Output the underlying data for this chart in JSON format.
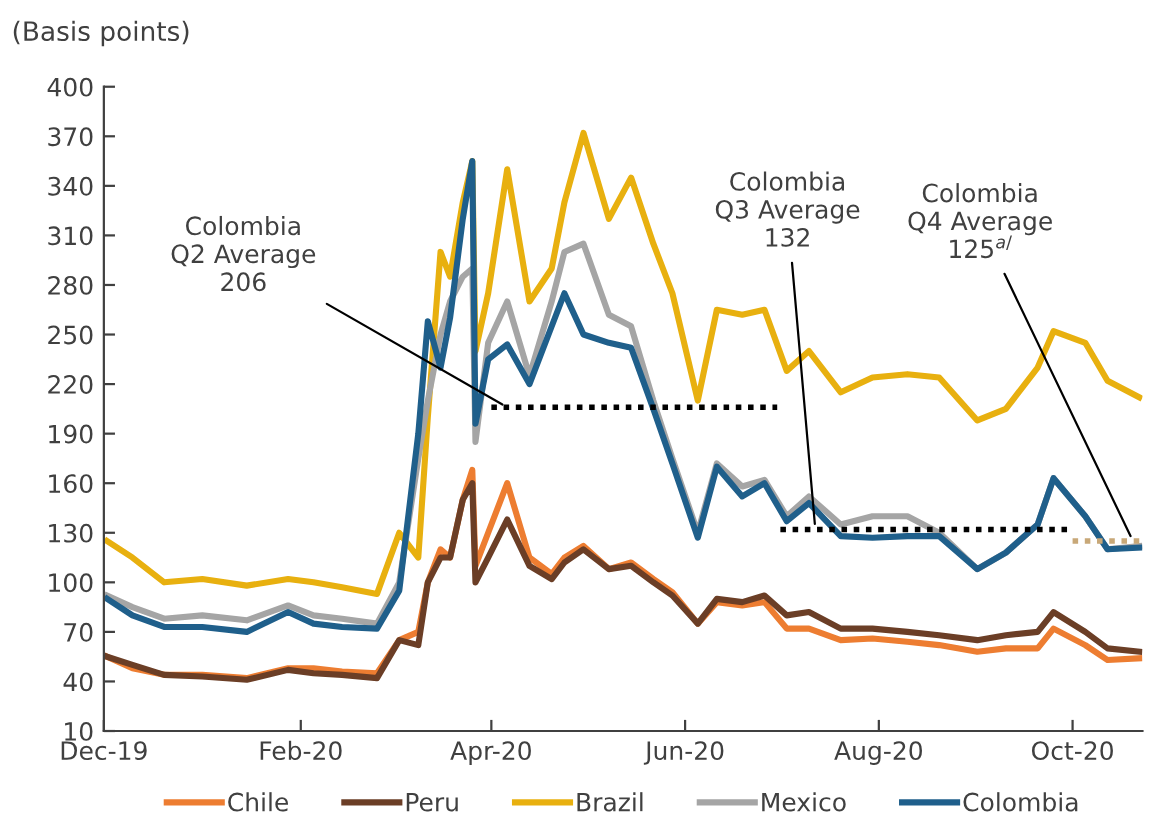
{
  "chart_data": {
    "type": "line",
    "ylabel": "(Basis points)",
    "x": [
      "2019-12-02",
      "2019-12-10",
      "2019-12-20",
      "2020-01-01",
      "2020-01-15",
      "2020-01-28",
      "2020-02-05",
      "2020-02-14",
      "2020-02-25",
      "2020-03-03",
      "2020-03-09",
      "2020-03-12",
      "2020-03-16",
      "2020-03-19",
      "2020-03-23",
      "2020-03-26",
      "2020-03-27",
      "2020-03-31",
      "2020-04-06",
      "2020-04-13",
      "2020-04-20",
      "2020-04-24",
      "2020-04-30",
      "2020-05-08",
      "2020-05-15",
      "2020-05-22",
      "2020-05-28",
      "2020-06-05",
      "2020-06-11",
      "2020-06-19",
      "2020-06-26",
      "2020-07-03",
      "2020-07-10",
      "2020-07-20",
      "2020-07-30",
      "2020-08-10",
      "2020-08-20",
      "2020-09-01",
      "2020-09-10",
      "2020-09-20",
      "2020-09-25",
      "2020-10-05",
      "2020-10-12",
      "2020-10-22"
    ],
    "series": [
      {
        "name": "Chile",
        "color": "#ed7d31",
        "values": [
          55,
          48,
          44,
          44,
          42,
          48,
          48,
          46,
          45,
          65,
          70,
          100,
          120,
          115,
          150,
          168,
          110,
          130,
          160,
          115,
          105,
          115,
          122,
          108,
          112,
          102,
          94,
          75,
          88,
          86,
          88,
          72,
          72,
          65,
          66,
          64,
          62,
          58,
          60,
          60,
          72,
          62,
          53,
          54
        ]
      },
      {
        "name": "Peru",
        "color": "#6b3e26",
        "values": [
          55,
          50,
          44,
          43,
          41,
          47,
          45,
          44,
          42,
          65,
          62,
          100,
          115,
          115,
          150,
          160,
          100,
          115,
          138,
          110,
          102,
          112,
          120,
          108,
          110,
          100,
          92,
          75,
          90,
          88,
          92,
          80,
          82,
          72,
          72,
          70,
          68,
          65,
          68,
          70,
          82,
          70,
          60,
          58
        ]
      },
      {
        "name": "Brazil",
        "color": "#e8b00f",
        "values": [
          125,
          115,
          100,
          102,
          98,
          102,
          100,
          97,
          93,
          130,
          115,
          200,
          300,
          285,
          330,
          355,
          240,
          275,
          350,
          270,
          290,
          330,
          372,
          320,
          345,
          305,
          275,
          210,
          265,
          262,
          265,
          228,
          240,
          215,
          224,
          226,
          224,
          198,
          205,
          230,
          252,
          245,
          222,
          212
        ]
      },
      {
        "name": "Mexico",
        "color": "#a5a5a5",
        "values": [
          92,
          85,
          78,
          80,
          77,
          86,
          80,
          78,
          75,
          100,
          175,
          210,
          250,
          270,
          285,
          290,
          185,
          245,
          270,
          225,
          270,
          300,
          305,
          262,
          255,
          210,
          175,
          130,
          172,
          158,
          162,
          140,
          152,
          135,
          140,
          140,
          130,
          108,
          118,
          135,
          163,
          140,
          120,
          122
        ]
      },
      {
        "name": "Colombia",
        "color": "#1f5f8b",
        "values": [
          90,
          80,
          73,
          73,
          70,
          82,
          75,
          73,
          72,
          95,
          190,
          258,
          230,
          260,
          320,
          355,
          196,
          235,
          244,
          220,
          255,
          275,
          250,
          245,
          242,
          205,
          172,
          127,
          170,
          152,
          160,
          137,
          148,
          128,
          127,
          128,
          128,
          108,
          118,
          135,
          163,
          140,
          120,
          121
        ]
      },
      {
        "type": "line",
        "x": [
          "2020-04-01",
          "2020-06-30"
        ],
        "values": [
          206,
          206
        ],
        "color": "#000000",
        "line_style": "dotted"
      },
      {
        "type": "line",
        "x": [
          "2020-07-01",
          "2020-09-30"
        ],
        "values": [
          132,
          132
        ],
        "color": "#000000",
        "line_style": "dotted"
      },
      {
        "type": "line",
        "x": [
          "2020-10-01",
          "2020-10-23"
        ],
        "values": [
          125,
          125
        ],
        "color": "#c8a878",
        "line_style": "dotted"
      }
    ],
    "annotations": [
      {
        "text": "Colombia\nQ2 Average\n206",
        "x": "2020-04-06",
        "y": 206
      },
      {
        "text": "Colombia\nQ3 Average\n132",
        "x": "2020-07-12",
        "y": 132
      },
      {
        "text": "Colombia\nQ4 Average\n125$^{a/}$",
        "x": "2020-10-20",
        "y": 125
      }
    ],
    "xlim": [
      "2019-12-01",
      "2020-10-23"
    ],
    "xticks": [
      {
        "value": "2019-12-01",
        "label": "Dec-19"
      },
      {
        "value": "2020-02-01",
        "label": "Feb-20"
      },
      {
        "value": "2020-04-01",
        "label": "Apr-20"
      },
      {
        "value": "2020-06-01",
        "label": "Jun-20"
      },
      {
        "value": "2020-08-01",
        "label": "Aug-20"
      },
      {
        "value": "2020-10-01",
        "label": "Oct-20"
      }
    ],
    "ylim": [
      10,
      400
    ],
    "yticks": [
      10,
      40,
      70,
      100,
      130,
      160,
      190,
      220,
      250,
      280,
      310,
      340,
      370,
      400
    ],
    "grid": false,
    "legend": "bottom",
    "marker": "none",
    "line_style": "solid"
  }
}
